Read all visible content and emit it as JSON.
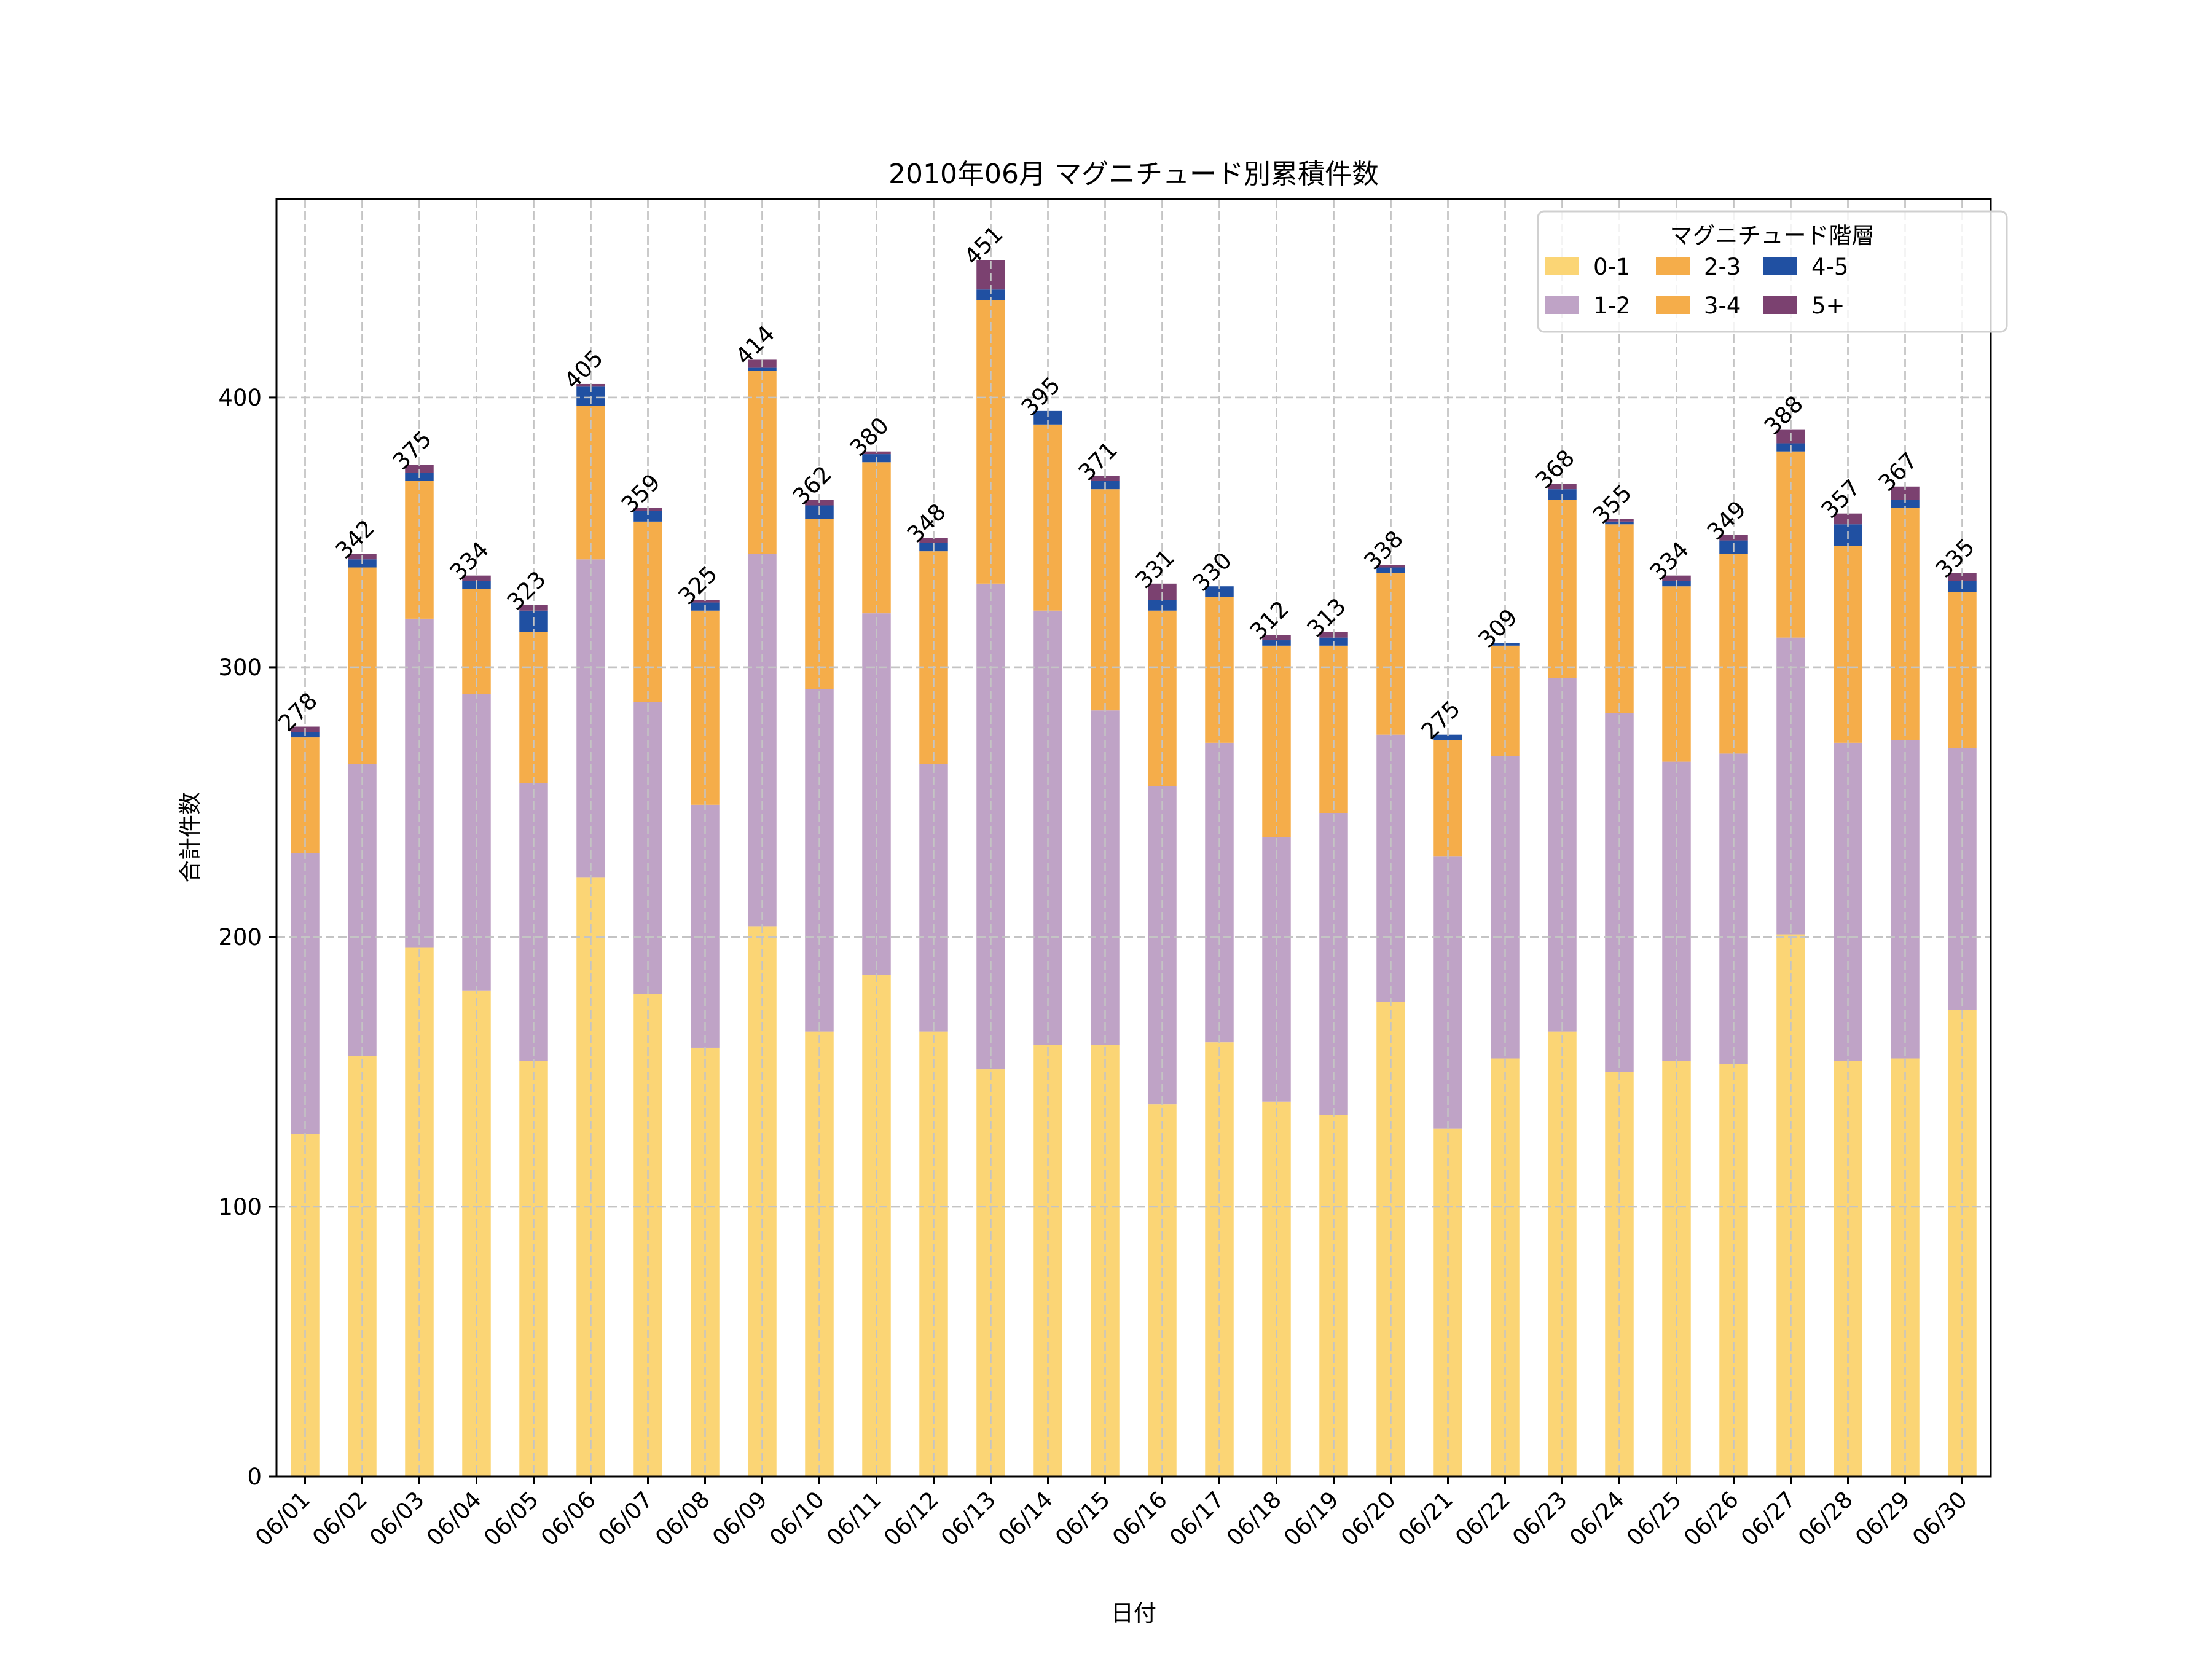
{
  "chart_data": {
    "type": "bar",
    "stacked": true,
    "title": "2010年06月 マグニチュード別累積件数",
    "xlabel": "日付",
    "ylabel": "合計件数",
    "ylim": [
      0,
      473.55
    ],
    "yticks": [
      0,
      100,
      200,
      300,
      400
    ],
    "grid": true,
    "legend": {
      "title": "マグニチュード階層",
      "placement": "top-right",
      "columns": 3
    },
    "categories": [
      "06/01",
      "06/02",
      "06/03",
      "06/04",
      "06/05",
      "06/06",
      "06/07",
      "06/08",
      "06/09",
      "06/10",
      "06/11",
      "06/12",
      "06/13",
      "06/14",
      "06/15",
      "06/16",
      "06/17",
      "06/18",
      "06/19",
      "06/20",
      "06/21",
      "06/22",
      "06/23",
      "06/24",
      "06/25",
      "06/26",
      "06/27",
      "06/28",
      "06/29",
      "06/30"
    ],
    "series": [
      {
        "name": "0-1",
        "color": "#fbd575",
        "values": [
          127,
          156,
          196,
          180,
          154,
          222,
          179,
          159,
          204,
          165,
          186,
          165,
          151,
          160,
          160,
          138,
          161,
          139,
          134,
          176,
          129,
          155,
          165,
          150,
          154,
          153,
          201,
          154,
          155,
          173
        ]
      },
      {
        "name": "1-2",
        "color": "#bfa3c6",
        "values": [
          104,
          108,
          122,
          110,
          103,
          118,
          108,
          90,
          138,
          127,
          134,
          99,
          180,
          161,
          124,
          118,
          111,
          98,
          112,
          99,
          101,
          112,
          131,
          133,
          111,
          115,
          110,
          118,
          118,
          97
        ]
      },
      {
        "name": "2-3",
        "color": "#f5ad4a",
        "values": [
          43,
          73,
          51,
          39,
          56,
          57,
          67,
          72,
          68,
          63,
          56,
          79,
          105,
          69,
          82,
          65,
          54,
          71,
          62,
          60,
          43,
          41,
          66,
          70,
          65,
          74,
          69,
          73,
          86,
          58
        ]
      },
      {
        "name": "3-4",
        "color": "#f5ad4a",
        "values": [
          0,
          0,
          0,
          0,
          0,
          0,
          0,
          0,
          0,
          0,
          0,
          0,
          0,
          0,
          0,
          0,
          0,
          0,
          0,
          0,
          0,
          0,
          0,
          0,
          0,
          0,
          0,
          0,
          0,
          0
        ]
      },
      {
        "name": "4-5",
        "color": "#2050a2",
        "values": [
          2,
          3,
          3,
          3,
          8,
          7,
          4,
          3,
          1,
          5,
          3,
          3,
          4,
          5,
          3,
          4,
          4,
          2,
          3,
          2,
          2,
          1,
          4,
          1,
          2,
          5,
          3,
          8,
          3,
          4
        ]
      },
      {
        "name": "5+",
        "color": "#7b4170",
        "values": [
          2,
          2,
          3,
          2,
          2,
          1,
          1,
          1,
          3,
          2,
          1,
          2,
          11,
          0,
          2,
          6,
          0,
          2,
          2,
          1,
          0,
          0,
          2,
          1,
          2,
          2,
          5,
          4,
          5,
          3
        ]
      }
    ],
    "totals": [
      278,
      342,
      375,
      334,
      323,
      405,
      359,
      325,
      414,
      362,
      380,
      348,
      451,
      395,
      371,
      331,
      330,
      312,
      313,
      338,
      275,
      309,
      368,
      355,
      334,
      349,
      388,
      357,
      367,
      335
    ],
    "note": "2-3 and 3-4 share the same color; the visible orange segment is the combined 2-3 + 3-4 count."
  }
}
